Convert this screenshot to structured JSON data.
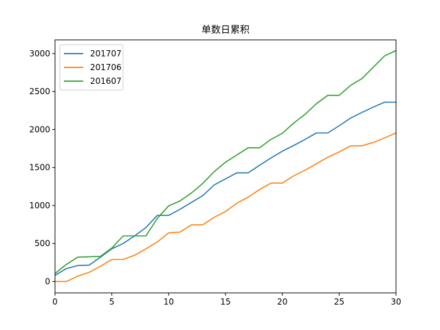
{
  "chart_data": {
    "type": "line",
    "title": "单数日累积",
    "xlabel": "",
    "ylabel": "",
    "xlim": [
      0,
      30
    ],
    "ylim": [
      -150,
      3180
    ],
    "xticks": [
      0,
      5,
      10,
      15,
      20,
      25,
      30
    ],
    "yticks": [
      0,
      500,
      1000,
      1500,
      2000,
      2500,
      3000
    ],
    "grid": false,
    "legend_position": "top-left",
    "x": [
      0,
      1,
      2,
      3,
      4,
      5,
      6,
      7,
      8,
      9,
      10,
      11,
      12,
      13,
      14,
      15,
      16,
      17,
      18,
      19,
      20,
      21,
      22,
      23,
      24,
      25,
      26,
      27,
      28,
      29,
      30
    ],
    "series": [
      {
        "name": "201707",
        "color": "#1f77b4",
        "values": [
          80,
          170,
          210,
          215,
          320,
          430,
          500,
          600,
          710,
          870,
          870,
          950,
          1040,
          1130,
          1270,
          1350,
          1430,
          1430,
          1530,
          1625,
          1715,
          1790,
          1870,
          1955,
          1955,
          2050,
          2150,
          2225,
          2295,
          2360,
          2360
        ]
      },
      {
        "name": "201706",
        "color": "#ff7f0e",
        "values": [
          0,
          0,
          70,
          120,
          200,
          290,
          290,
          345,
          430,
          520,
          640,
          650,
          745,
          745,
          845,
          920,
          1030,
          1110,
          1210,
          1295,
          1295,
          1390,
          1465,
          1550,
          1635,
          1705,
          1785,
          1785,
          1830,
          1890,
          1955
        ]
      },
      {
        "name": "201607",
        "color": "#2ca02c",
        "values": [
          105,
          225,
          320,
          325,
          330,
          440,
          600,
          600,
          600,
          830,
          995,
          1060,
          1165,
          1290,
          1445,
          1570,
          1665,
          1760,
          1760,
          1870,
          1950,
          2085,
          2200,
          2340,
          2450,
          2450,
          2580,
          2670,
          2820,
          2970,
          3040
        ]
      }
    ]
  }
}
